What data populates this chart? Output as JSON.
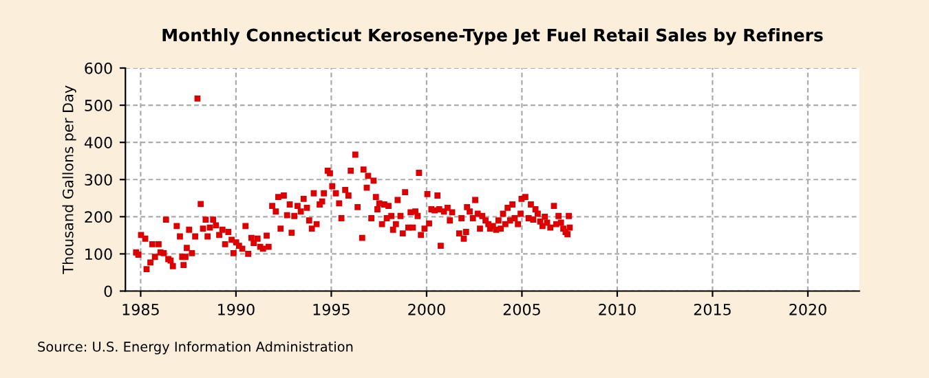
{
  "chart_data": {
    "type": "scatter",
    "title": "Monthly Connecticut Kerosene-Type Jet Fuel Retail Sales by Refiners",
    "ylabel": "Thousand Gallons per Day",
    "annotations": [
      "Source: U.S. Energy Information Administration"
    ],
    "x": [
      1984.76,
      1984.88,
      1985.02,
      1985.24,
      1985.31,
      1985.51,
      1985.61,
      1985.75,
      1985.94,
      1986.04,
      1986.21,
      1986.33,
      1986.45,
      1986.57,
      1986.69,
      1986.89,
      1987.06,
      1987.18,
      1987.25,
      1987.35,
      1987.42,
      1987.54,
      1987.69,
      1987.86,
      1987.98,
      1988.15,
      1988.27,
      1988.41,
      1988.51,
      1988.63,
      1988.8,
      1988.95,
      1989.12,
      1989.29,
      1989.43,
      1989.6,
      1989.77,
      1989.87,
      1990.01,
      1990.16,
      1990.33,
      1990.5,
      1990.64,
      1990.81,
      1990.93,
      1991.13,
      1991.27,
      1991.42,
      1991.61,
      1991.71,
      1991.9,
      1992.09,
      1992.22,
      1992.34,
      1992.51,
      1992.68,
      1992.82,
      1992.92,
      1993.06,
      1993.23,
      1993.4,
      1993.55,
      1993.72,
      1993.84,
      1993.98,
      1994.08,
      1994.23,
      1994.39,
      1994.52,
      1994.61,
      1994.81,
      1994.93,
      1995.05,
      1995.24,
      1995.41,
      1995.53,
      1995.73,
      1995.9,
      1996.02,
      1996.26,
      1996.38,
      1996.62,
      1996.69,
      1996.86,
      1996.93,
      1997.1,
      1997.22,
      1997.34,
      1997.42,
      1997.52,
      1997.66,
      1997.78,
      1997.91,
      1998.0,
      1998.15,
      1998.24,
      1998.39,
      1998.48,
      1998.63,
      1998.75,
      1998.87,
      1999.04,
      1999.16,
      1999.28,
      1999.41,
      1999.53,
      1999.6,
      1999.7,
      1999.89,
      2000.04,
      2000.13,
      2000.25,
      2000.42,
      2000.57,
      2000.66,
      2000.74,
      2000.91,
      2001.1,
      2001.22,
      2001.34,
      2001.71,
      2001.83,
      2001.95,
      2002.07,
      2002.12,
      2002.26,
      2002.43,
      2002.55,
      2002.68,
      2002.8,
      2002.92,
      2003.09,
      2003.24,
      2003.33,
      2003.48,
      2003.65,
      2003.77,
      2003.89,
      2004.01,
      2004.13,
      2004.25,
      2004.38,
      2004.5,
      2004.62,
      2004.79,
      2004.93,
      2004.98,
      2005.18,
      2005.35,
      2005.47,
      2005.59,
      2005.71,
      2005.83,
      2005.96,
      2006.08,
      2006.2,
      2006.32,
      2006.49,
      2006.68,
      2006.8,
      2006.92,
      2007.05,
      2007.17,
      2007.29,
      2007.39,
      2007.46,
      2007.51
    ],
    "series": [
      {
        "color": "#dd0000",
        "values": [
          104,
          98,
          151,
          141,
          59,
          77,
          126,
          92,
          126,
          104,
          102,
          192,
          86,
          82,
          67,
          175,
          147,
          92,
          70,
          92,
          116,
          165,
          102,
          147,
          518,
          234,
          168,
          192,
          147,
          171,
          192,
          177,
          151,
          165,
          126,
          159,
          138,
          102,
          131,
          122,
          114,
          175,
          100,
          143,
          129,
          141,
          119,
          114,
          149,
          119,
          229,
          214,
          253,
          168,
          257,
          204,
          233,
          157,
          202,
          229,
          214,
          248,
          224,
          190,
          168,
          263,
          180,
          233,
          241,
          263,
          324,
          317,
          282,
          263,
          236,
          196,
          272,
          257,
          324,
          367,
          226,
          143,
          327,
          278,
          310,
          196,
          297,
          253,
          220,
          236,
          180,
          233,
          196,
          229,
          202,
          165,
          180,
          245,
          202,
          155,
          266,
          171,
          212,
          171,
          214,
          202,
          318,
          151,
          168,
          261,
          182,
          220,
          217,
          257,
          220,
          122,
          214,
          224,
          190,
          212,
          155,
          196,
          141,
          159,
          226,
          214,
          196,
          245,
          208,
          168,
          202,
          190,
          180,
          168,
          175,
          165,
          190,
          168,
          208,
          180,
          224,
          190,
          233,
          196,
          180,
          208,
          248,
          253,
          196,
          233,
          192,
          220,
          208,
          187,
          175,
          200,
          184,
          171,
          229,
          180,
          202,
          184,
          168,
          159,
          153,
          202,
          171
        ]
      }
    ],
    "xlim": [
      1984.2,
      2022.7
    ],
    "xticks": [
      1985,
      1990,
      1995,
      2000,
      2005,
      2010,
      2015,
      2020
    ],
    "ylim": [
      0,
      600
    ],
    "yticks": [
      0,
      100,
      200,
      300,
      400,
      500,
      600
    ],
    "grid": true,
    "marker": "square",
    "legend": false
  }
}
